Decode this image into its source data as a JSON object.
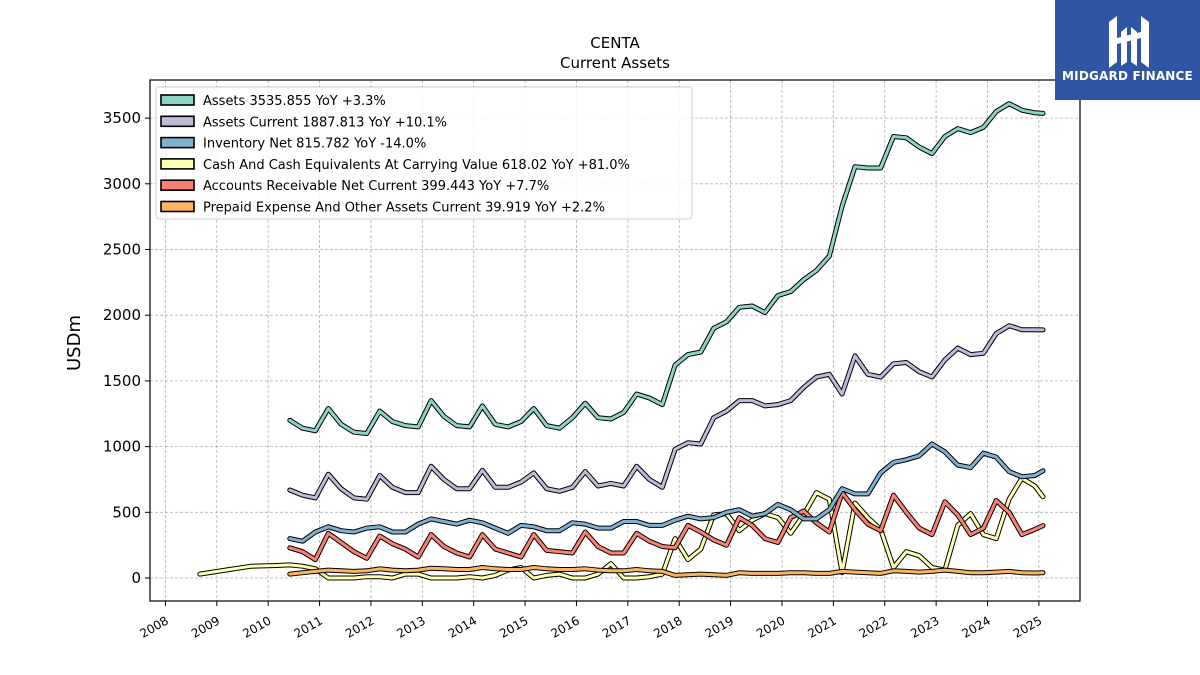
{
  "brand": {
    "logo_text": "MIDGARD FINANCE",
    "logo_color": "#2f55a4"
  },
  "chart_data": {
    "type": "line",
    "title": "CENTA",
    "subtitle": "Current  Assets",
    "xlabel": "",
    "ylabel": "USDm",
    "xlim": [
      2007.7,
      2025.8
    ],
    "ylim": [
      -175,
      3790
    ],
    "x_ticks": [
      2008,
      2009,
      2010,
      2011,
      2012,
      2013,
      2014,
      2015,
      2016,
      2017,
      2018,
      2019,
      2020,
      2021,
      2022,
      2023,
      2024,
      2025
    ],
    "y_ticks": [
      0,
      500,
      1000,
      1500,
      2000,
      2500,
      3000,
      3500
    ],
    "grid": true,
    "legend_position": "upper-left",
    "series": [
      {
        "name": "Assets",
        "legend": "Assets  3535.855 YoY +3.3%",
        "color": "#8dd3c7",
        "x": [
          2010.42,
          2010.67,
          2010.92,
          2011.17,
          2011.42,
          2011.67,
          2011.92,
          2012.17,
          2012.42,
          2012.67,
          2012.92,
          2013.17,
          2013.42,
          2013.67,
          2013.92,
          2014.17,
          2014.42,
          2014.67,
          2014.92,
          2015.17,
          2015.42,
          2015.67,
          2015.92,
          2016.17,
          2016.42,
          2016.67,
          2016.92,
          2017.17,
          2017.42,
          2017.67,
          2017.92,
          2018.17,
          2018.42,
          2018.67,
          2018.92,
          2019.17,
          2019.42,
          2019.67,
          2019.92,
          2020.17,
          2020.42,
          2020.67,
          2020.92,
          2021.17,
          2021.42,
          2021.67,
          2021.92,
          2022.17,
          2022.42,
          2022.67,
          2022.92,
          2023.17,
          2023.42,
          2023.67,
          2023.92,
          2024.17,
          2024.42,
          2024.67,
          2024.92,
          2025.08
        ],
        "y": [
          1200,
          1140,
          1120,
          1290,
          1170,
          1110,
          1100,
          1270,
          1190,
          1160,
          1150,
          1350,
          1230,
          1160,
          1150,
          1310,
          1170,
          1150,
          1190,
          1290,
          1160,
          1140,
          1220,
          1330,
          1220,
          1210,
          1260,
          1400,
          1370,
          1320,
          1620,
          1700,
          1720,
          1900,
          1950,
          2060,
          2070,
          2020,
          2150,
          2180,
          2270,
          2340,
          2450,
          2830,
          3130,
          3120,
          3120,
          3360,
          3350,
          3280,
          3230,
          3360,
          3420,
          3390,
          3430,
          3550,
          3610,
          3560,
          3540,
          3536
        ]
      },
      {
        "name": "Assets Current",
        "legend": "Assets Current  1887.813 YoY +10.1%",
        "color": "#bebada",
        "x": [
          2010.42,
          2010.67,
          2010.92,
          2011.17,
          2011.42,
          2011.67,
          2011.92,
          2012.17,
          2012.42,
          2012.67,
          2012.92,
          2013.17,
          2013.42,
          2013.67,
          2013.92,
          2014.17,
          2014.42,
          2014.67,
          2014.92,
          2015.17,
          2015.42,
          2015.67,
          2015.92,
          2016.17,
          2016.42,
          2016.67,
          2016.92,
          2017.17,
          2017.42,
          2017.67,
          2017.92,
          2018.17,
          2018.42,
          2018.67,
          2018.92,
          2019.17,
          2019.42,
          2019.67,
          2019.92,
          2020.17,
          2020.42,
          2020.67,
          2020.92,
          2021.17,
          2021.42,
          2021.67,
          2021.92,
          2022.17,
          2022.42,
          2022.67,
          2022.92,
          2023.17,
          2023.42,
          2023.67,
          2023.92,
          2024.17,
          2024.42,
          2024.67,
          2024.92,
          2025.08
        ],
        "y": [
          670,
          630,
          610,
          790,
          680,
          610,
          600,
          780,
          690,
          650,
          650,
          850,
          750,
          680,
          680,
          820,
          690,
          690,
          730,
          800,
          680,
          660,
          690,
          810,
          700,
          720,
          700,
          850,
          750,
          690,
          980,
          1030,
          1020,
          1220,
          1270,
          1350,
          1350,
          1310,
          1320,
          1350,
          1450,
          1530,
          1550,
          1400,
          1690,
          1550,
          1530,
          1630,
          1640,
          1570,
          1530,
          1660,
          1750,
          1700,
          1710,
          1860,
          1920,
          1890,
          1890,
          1888
        ]
      },
      {
        "name": "Inventory Net",
        "legend": "Inventory Net  815.782 YoY -14.0%",
        "color": "#80b1d3",
        "x": [
          2010.42,
          2010.67,
          2010.92,
          2011.17,
          2011.42,
          2011.67,
          2011.92,
          2012.17,
          2012.42,
          2012.67,
          2012.92,
          2013.17,
          2013.42,
          2013.67,
          2013.92,
          2014.17,
          2014.42,
          2014.67,
          2014.92,
          2015.17,
          2015.42,
          2015.67,
          2015.92,
          2016.17,
          2016.42,
          2016.67,
          2016.92,
          2017.17,
          2017.42,
          2017.67,
          2017.92,
          2018.17,
          2018.42,
          2018.67,
          2018.92,
          2019.17,
          2019.42,
          2019.67,
          2019.92,
          2020.17,
          2020.42,
          2020.67,
          2020.92,
          2021.17,
          2021.42,
          2021.67,
          2021.92,
          2022.17,
          2022.42,
          2022.67,
          2022.92,
          2023.17,
          2023.42,
          2023.67,
          2023.92,
          2024.17,
          2024.42,
          2024.67,
          2024.92,
          2025.08
        ],
        "y": [
          300,
          280,
          350,
          390,
          360,
          350,
          380,
          390,
          350,
          350,
          410,
          450,
          430,
          410,
          440,
          420,
          380,
          340,
          400,
          390,
          360,
          360,
          420,
          410,
          380,
          380,
          430,
          430,
          400,
          400,
          440,
          470,
          450,
          460,
          500,
          520,
          470,
          490,
          560,
          520,
          450,
          450,
          520,
          680,
          640,
          640,
          800,
          880,
          900,
          930,
          1020,
          960,
          860,
          840,
          950,
          920,
          810,
          770,
          780,
          816
        ]
      },
      {
        "name": "Cash And Cash Equivalents At Carrying Value",
        "legend": "Cash And Cash Equivalents At Carrying Value  618.02 YoY +81.0%",
        "color": "#ffffb3",
        "x": [
          2008.67,
          2009.17,
          2009.67,
          2010.17,
          2010.42,
          2010.67,
          2010.92,
          2011.17,
          2011.42,
          2011.67,
          2011.92,
          2012.17,
          2012.42,
          2012.67,
          2012.92,
          2013.17,
          2013.42,
          2013.67,
          2013.92,
          2014.17,
          2014.42,
          2014.67,
          2014.92,
          2015.17,
          2015.42,
          2015.67,
          2015.92,
          2016.17,
          2016.42,
          2016.67,
          2016.92,
          2017.17,
          2017.42,
          2017.67,
          2017.92,
          2018.17,
          2018.42,
          2018.67,
          2018.92,
          2019.17,
          2019.42,
          2019.67,
          2019.92,
          2020.17,
          2020.42,
          2020.67,
          2020.92,
          2021.17,
          2021.42,
          2021.67,
          2021.92,
          2022.17,
          2022.42,
          2022.67,
          2022.92,
          2023.17,
          2023.42,
          2023.67,
          2023.92,
          2024.17,
          2024.42,
          2024.67,
          2024.92,
          2025.08
        ],
        "y": [
          30,
          60,
          90,
          95,
          100,
          90,
          70,
          0,
          0,
          0,
          10,
          10,
          0,
          30,
          30,
          0,
          0,
          0,
          10,
          0,
          20,
          60,
          80,
          0,
          20,
          30,
          0,
          0,
          30,
          110,
          0,
          0,
          10,
          30,
          300,
          140,
          220,
          480,
          490,
          360,
          440,
          490,
          460,
          340,
          480,
          650,
          600,
          40,
          570,
          460,
          370,
          80,
          200,
          170,
          80,
          60,
          400,
          490,
          330,
          300,
          600,
          760,
          700,
          618
        ]
      },
      {
        "name": "Accounts Receivable Net Current",
        "legend": "Accounts Receivable Net Current  399.443 YoY +7.7%",
        "color": "#fb8072",
        "x": [
          2010.42,
          2010.67,
          2010.92,
          2011.17,
          2011.42,
          2011.67,
          2011.92,
          2012.17,
          2012.42,
          2012.67,
          2012.92,
          2013.17,
          2013.42,
          2013.67,
          2013.92,
          2014.17,
          2014.42,
          2014.67,
          2014.92,
          2015.17,
          2015.42,
          2015.67,
          2015.92,
          2016.17,
          2016.42,
          2016.67,
          2016.92,
          2017.17,
          2017.42,
          2017.67,
          2017.92,
          2018.17,
          2018.42,
          2018.67,
          2018.92,
          2019.17,
          2019.42,
          2019.67,
          2019.92,
          2020.17,
          2020.42,
          2020.67,
          2020.92,
          2021.17,
          2021.42,
          2021.67,
          2021.92,
          2022.17,
          2022.42,
          2022.67,
          2022.92,
          2023.17,
          2023.42,
          2023.67,
          2023.92,
          2024.17,
          2024.42,
          2024.67,
          2024.92,
          2025.08
        ],
        "y": [
          230,
          200,
          140,
          340,
          270,
          200,
          150,
          320,
          260,
          220,
          160,
          330,
          240,
          190,
          160,
          330,
          220,
          190,
          160,
          330,
          210,
          200,
          190,
          350,
          240,
          190,
          190,
          340,
          280,
          240,
          230,
          400,
          350,
          290,
          250,
          460,
          400,
          300,
          270,
          460,
          510,
          420,
          350,
          650,
          520,
          410,
          360,
          630,
          500,
          380,
          330,
          580,
          480,
          330,
          380,
          590,
          500,
          330,
          370,
          399
        ]
      },
      {
        "name": "Prepaid Expense And Other Assets Current",
        "legend": "Prepaid Expense And Other Assets Current  39.919 YoY +2.2%",
        "color": "#fdb462",
        "x": [
          2010.42,
          2010.67,
          2010.92,
          2011.17,
          2011.42,
          2011.67,
          2011.92,
          2012.17,
          2012.42,
          2012.67,
          2012.92,
          2013.17,
          2013.42,
          2013.67,
          2013.92,
          2014.17,
          2014.42,
          2014.67,
          2014.92,
          2015.17,
          2015.42,
          2015.67,
          2015.92,
          2016.17,
          2016.42,
          2016.67,
          2016.92,
          2017.17,
          2017.42,
          2017.67,
          2017.92,
          2018.17,
          2018.42,
          2018.67,
          2018.92,
          2019.17,
          2019.42,
          2019.67,
          2019.92,
          2020.17,
          2020.42,
          2020.67,
          2020.92,
          2021.17,
          2021.42,
          2021.67,
          2021.92,
          2022.17,
          2022.42,
          2022.67,
          2022.92,
          2023.17,
          2023.42,
          2023.67,
          2023.92,
          2024.17,
          2024.42,
          2024.67,
          2024.92,
          2025.08
        ],
        "y": [
          30,
          40,
          50,
          60,
          55,
          50,
          55,
          70,
          60,
          55,
          60,
          75,
          70,
          65,
          65,
          80,
          70,
          65,
          65,
          80,
          70,
          65,
          65,
          70,
          60,
          55,
          55,
          65,
          55,
          50,
          20,
          25,
          30,
          25,
          20,
          40,
          35,
          35,
          35,
          40,
          40,
          35,
          35,
          50,
          45,
          40,
          35,
          55,
          50,
          45,
          50,
          60,
          50,
          40,
          40,
          45,
          50,
          40,
          38,
          40
        ]
      }
    ]
  }
}
